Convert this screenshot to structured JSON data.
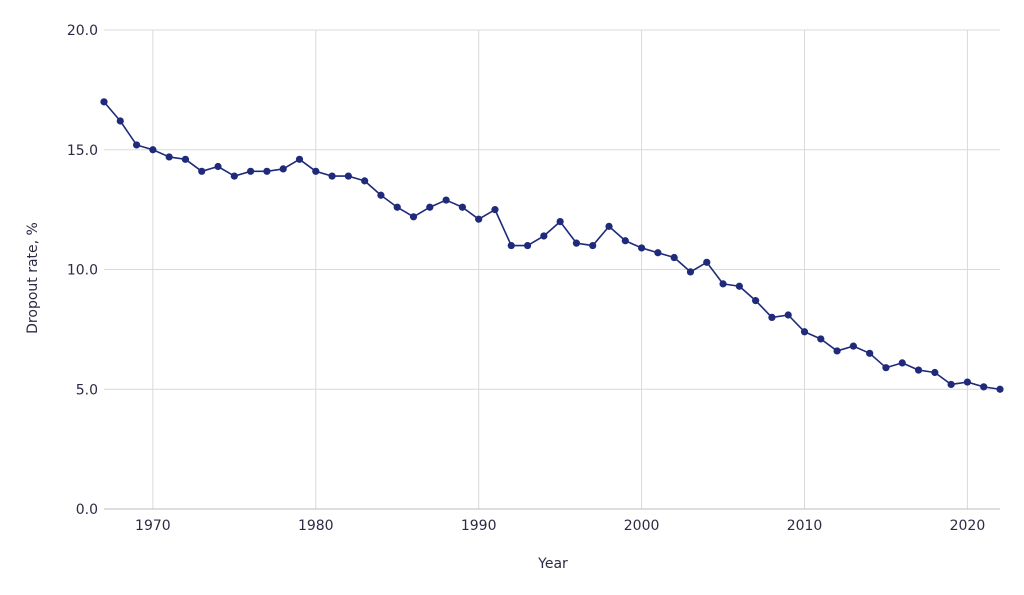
{
  "chart_data": {
    "type": "line",
    "title": "",
    "xlabel": "Year",
    "ylabel": "Dropout rate, %",
    "xlim": [
      1967,
      2022
    ],
    "ylim": [
      0,
      20
    ],
    "x_ticks": [
      1970,
      1980,
      1990,
      2000,
      2010,
      2020
    ],
    "y_ticks": [
      "0.0",
      "5.0",
      "10.0",
      "15.0",
      "20.0"
    ],
    "grid": true,
    "colors": {
      "line": "#1f2a7a",
      "marker": "#1f2a7a",
      "grid": "#d9d9d9",
      "text": "#2b2b45"
    },
    "series": [
      {
        "x": [
          1967,
          1968,
          1969,
          1970,
          1971,
          1972,
          1973,
          1974,
          1975,
          1976,
          1977,
          1978,
          1979,
          1980,
          1981,
          1982,
          1983,
          1984,
          1985,
          1986,
          1987,
          1988,
          1989,
          1990,
          1991,
          1992,
          1993,
          1994,
          1995,
          1996,
          1997,
          1998,
          1999,
          2000,
          2001,
          2002,
          2003,
          2004,
          2005,
          2006,
          2007,
          2008,
          2009,
          2010,
          2011,
          2012,
          2013,
          2014,
          2015,
          2016,
          2017,
          2018,
          2019,
          2020,
          2021,
          2022
        ],
        "y": [
          17.0,
          16.2,
          15.2,
          15.0,
          14.7,
          14.6,
          14.1,
          14.3,
          13.9,
          14.1,
          14.1,
          14.2,
          14.6,
          14.1,
          13.9,
          13.9,
          13.7,
          13.1,
          12.6,
          12.2,
          12.6,
          12.9,
          12.6,
          12.1,
          12.5,
          11.0,
          11.0,
          11.4,
          12.0,
          11.1,
          11.0,
          11.8,
          11.2,
          10.9,
          10.7,
          10.5,
          9.9,
          10.3,
          9.4,
          9.3,
          8.7,
          8.0,
          8.1,
          7.4,
          7.1,
          6.6,
          6.8,
          6.5,
          5.9,
          6.1,
          5.8,
          5.7,
          5.2,
          5.3,
          5.1,
          5.0
        ]
      }
    ]
  }
}
